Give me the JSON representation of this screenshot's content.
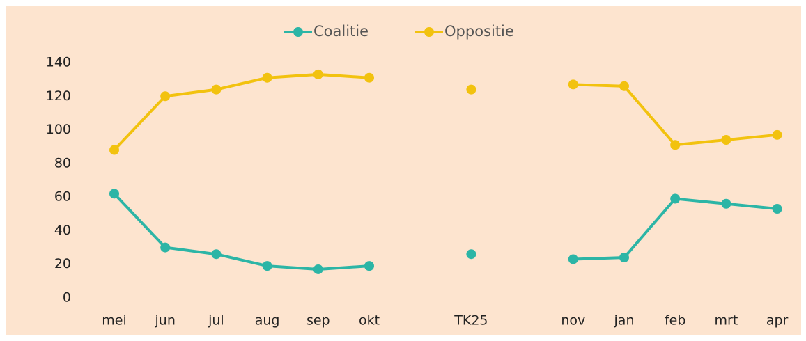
{
  "chart_data": {
    "type": "line",
    "categories": [
      "mei",
      "jun",
      "jul",
      "aug",
      "sep",
      "okt",
      null,
      "TK25",
      null,
      "nov",
      "jan",
      "feb",
      "mrt",
      "apr"
    ],
    "series": [
      {
        "name": "Coalitie",
        "color": "#2cb5a6",
        "values": [
          62,
          30,
          26,
          19,
          17,
          19,
          null,
          26,
          null,
          23,
          24,
          59,
          56,
          53
        ]
      },
      {
        "name": "Oppositie",
        "color": "#f2c20f",
        "values": [
          88,
          120,
          124,
          131,
          133,
          131,
          null,
          124,
          null,
          127,
          126,
          91,
          94,
          97
        ]
      }
    ],
    "ylim": [
      0,
      140
    ],
    "yticks": [
      0,
      20,
      40,
      60,
      80,
      100,
      120,
      140
    ],
    "grid": false,
    "legend": "top"
  }
}
